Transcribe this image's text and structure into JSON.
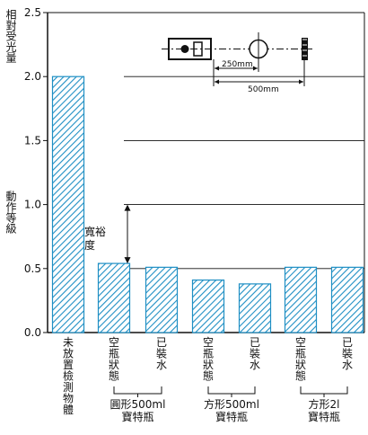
{
  "chart_data": {
    "type": "bar",
    "ylabel": "相對受光量",
    "ylim": [
      0,
      2.5
    ],
    "yticks": [
      "0.0",
      "0.5",
      "1.0",
      "1.5",
      "2.0",
      "2.5"
    ],
    "grid": true,
    "bar_color": "#1f8fc4",
    "categories": [
      "未放置檢測物體",
      "空瓶狀態",
      "已裝水",
      "空瓶狀態",
      "已裝水",
      "空瓶狀態",
      "已裝水"
    ],
    "values": [
      2.0,
      0.54,
      0.51,
      0.41,
      0.38,
      0.51,
      0.51
    ],
    "groups": [
      {
        "label": "圓形500ml寶特瓶",
        "categories": [
          1,
          2
        ]
      },
      {
        "label": "方形500ml寶特瓶",
        "categories": [
          3,
          4
        ]
      },
      {
        "label": "方形2l寶特瓶",
        "categories": [
          5,
          6
        ]
      }
    ],
    "threshold": {
      "value": 1.0,
      "label": "動作等級"
    },
    "margin_annotation": {
      "label": "寬裕度",
      "from": 0.54,
      "to": 1.0
    },
    "inset": {
      "dim_short": "250mm",
      "dim_long": "500mm"
    }
  }
}
